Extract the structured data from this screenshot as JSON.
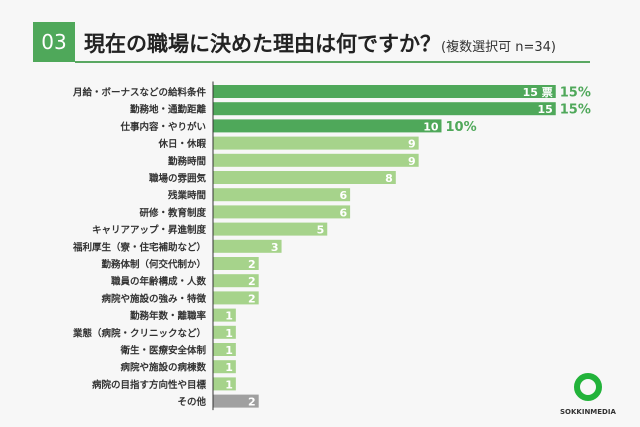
{
  "header": {
    "number": "03",
    "title": "現在の職場に決めた理由は何ですか？",
    "subtitle": "(複数選択可 n=34)"
  },
  "logo": {
    "text": "SOKKINMEDIA"
  },
  "colors": {
    "top": "#4fa85a",
    "normal": "#a6d38b",
    "other": "#a0a0a0",
    "pct": "#4fa85a"
  },
  "chart_data": {
    "type": "bar",
    "orientation": "horizontal",
    "unit_label": "票",
    "categories": [
      "月給・ボーナスなどの給料条件",
      "勤務地・通勤距離",
      "仕事内容・やりがい",
      "休日・休暇",
      "勤務時間",
      "職場の雰囲気",
      "残業時間",
      "研修・教育制度",
      "キャリアアップ・昇進制度",
      "福利厚生（寮・住宅補助など）",
      "勤務体制（何交代制か）",
      "職員の年齢構成・人数",
      "病院や施設の強み・特徴",
      "勤務年数・離職率",
      "業態（病院・クリニックなど）",
      "衛生・医療安全体制",
      "病院や施設の病棟数",
      "病院の目指す方向性や目標",
      "その他"
    ],
    "values": [
      15,
      15,
      10,
      9,
      9,
      8,
      6,
      6,
      5,
      3,
      2,
      2,
      2,
      1,
      1,
      1,
      1,
      1,
      2
    ],
    "percent_labels": [
      "15%",
      "15%",
      "10%"
    ],
    "grid": false
  }
}
